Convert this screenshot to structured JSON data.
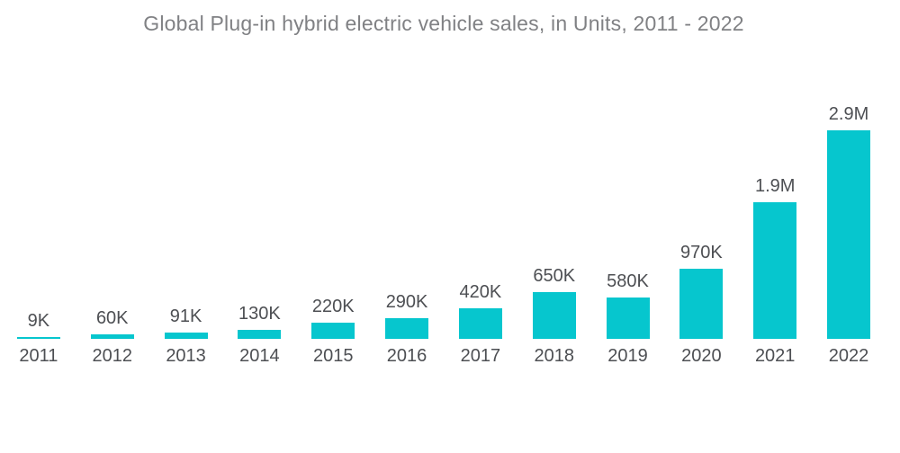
{
  "title": "Global Plug-in hybrid electric vehicle sales, in Units, 2011 - 2022",
  "chart_data": {
    "type": "bar",
    "title": "Global Plug-in hybrid electric vehicle sales, in Units, 2011 - 2022",
    "xlabel": "",
    "ylabel": "",
    "categories": [
      "2011",
      "2012",
      "2013",
      "2014",
      "2015",
      "2016",
      "2017",
      "2018",
      "2019",
      "2020",
      "2021",
      "2022"
    ],
    "values": [
      9000,
      60000,
      91000,
      130000,
      220000,
      290000,
      420000,
      650000,
      580000,
      970000,
      1900000,
      2900000
    ],
    "value_labels": [
      "9K",
      "60K",
      "91K",
      "130K",
      "220K",
      "290K",
      "420K",
      "650K",
      "580K",
      "970K",
      "1.9M",
      "2.9M"
    ],
    "ylim": [
      0,
      2900000
    ],
    "grid": false,
    "legend": false,
    "axis_lines": false,
    "bar_color": "#06c6ce",
    "label_color": "#4d4f53",
    "title_color": "#808184",
    "background_color": "#ffffff"
  }
}
